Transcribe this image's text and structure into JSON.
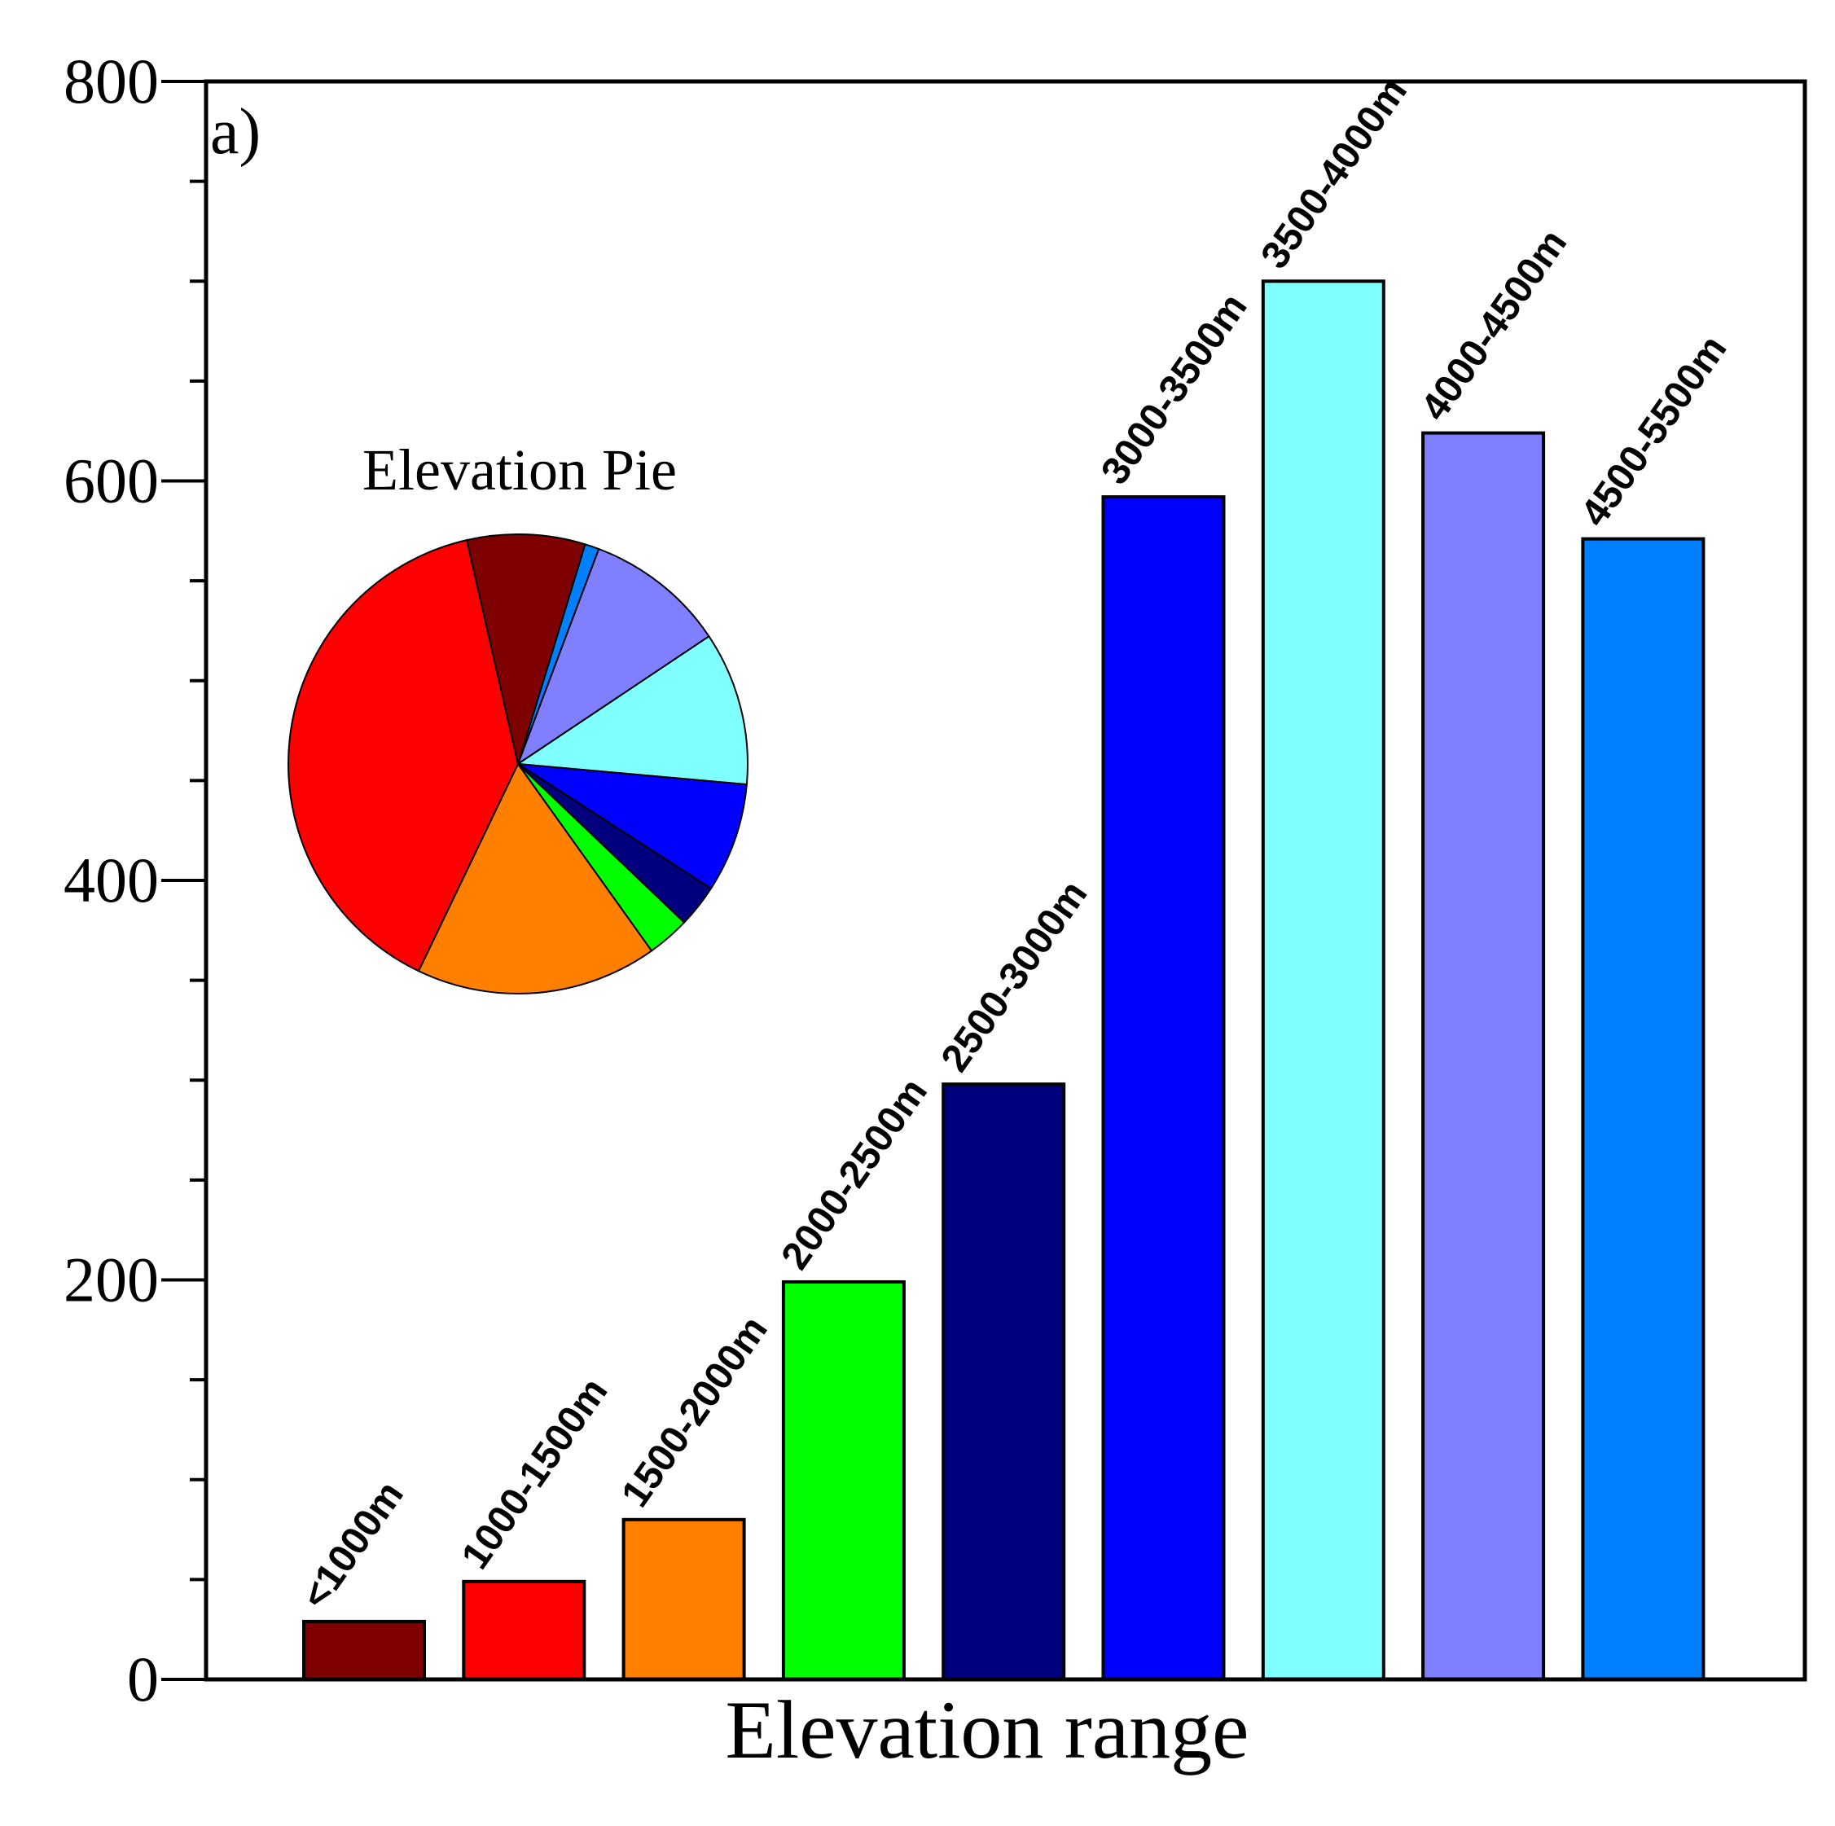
{
  "chart_data": [
    {
      "type": "bar",
      "panel_label": "a)",
      "xlabel": "Elevation range",
      "ylabel": "",
      "ylim": [
        0,
        800
      ],
      "yticks": [
        "0",
        "200",
        "400",
        "600",
        "800"
      ],
      "tick_values": [
        0,
        200,
        400,
        600,
        800
      ],
      "minor_tick_step": 50,
      "grid": false,
      "categories": [
        "<1000m",
        "1000-1500m",
        "1500-2000m",
        "2000-2500m",
        "2500-3000m",
        "3000-3500m",
        "3500-4000m",
        "4000-4500m",
        "4500-5500m"
      ],
      "values": [
        29,
        49,
        80,
        199,
        298,
        592,
        700,
        624,
        571
      ],
      "colors": [
        "#7f0000",
        "#ff0000",
        "#ff7f00",
        "#00ff00",
        "#00007f",
        "#0000ff",
        "#7fffff",
        "#7f7fff",
        "#007fff"
      ]
    },
    {
      "type": "pie",
      "title": "Elevation Pie",
      "categories": [
        "4500-5500m",
        "4000-4500m",
        "3500-4000m",
        "3000-3500m",
        "2500-3000m",
        "2000-2500m",
        "1500-2000m",
        "1000-1500m",
        "<1000m"
      ],
      "values": [
        1.0,
        9.9,
        10.8,
        7.7,
        3.0,
        3.0,
        17.0,
        39.3,
        8.3
      ],
      "colors": [
        "#007fff",
        "#7f7fff",
        "#7fffff",
        "#0000ff",
        "#00007f",
        "#00ff00",
        "#ff7f00",
        "#ff0000",
        "#7f0000"
      ],
      "start_angle_deg": 73,
      "direction": "clockwise"
    }
  ]
}
